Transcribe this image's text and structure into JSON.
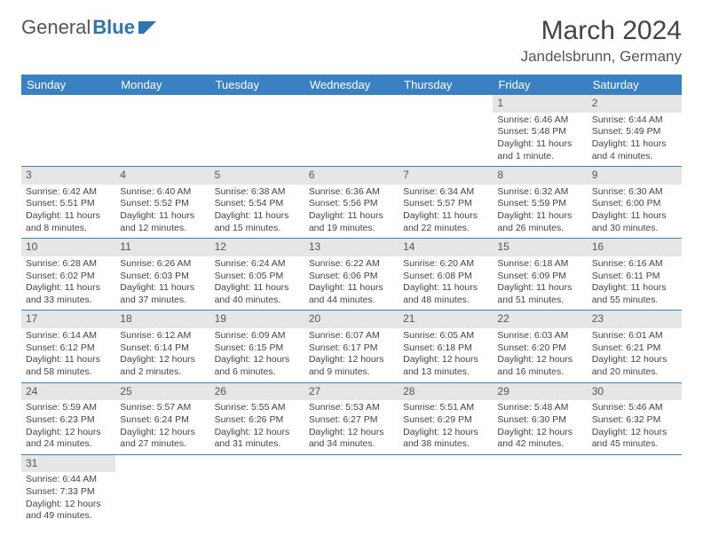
{
  "logo": {
    "text1": "General",
    "text2": "Blue"
  },
  "title": "March 2024",
  "location": "Jandelsbrunn, Germany",
  "colors": {
    "header_bg": "#3a81c4",
    "header_text": "#ffffff",
    "daynum_bg": "#e6e6e6",
    "border": "#3a81c4",
    "logo_blue": "#2e75b6"
  },
  "weekdays": [
    "Sunday",
    "Monday",
    "Tuesday",
    "Wednesday",
    "Thursday",
    "Friday",
    "Saturday"
  ],
  "weeks": [
    [
      null,
      null,
      null,
      null,
      null,
      {
        "n": "1",
        "sr": "Sunrise: 6:46 AM",
        "ss": "Sunset: 5:48 PM",
        "dl": "Daylight: 11 hours and 1 minute."
      },
      {
        "n": "2",
        "sr": "Sunrise: 6:44 AM",
        "ss": "Sunset: 5:49 PM",
        "dl": "Daylight: 11 hours and 4 minutes."
      }
    ],
    [
      {
        "n": "3",
        "sr": "Sunrise: 6:42 AM",
        "ss": "Sunset: 5:51 PM",
        "dl": "Daylight: 11 hours and 8 minutes."
      },
      {
        "n": "4",
        "sr": "Sunrise: 6:40 AM",
        "ss": "Sunset: 5:52 PM",
        "dl": "Daylight: 11 hours and 12 minutes."
      },
      {
        "n": "5",
        "sr": "Sunrise: 6:38 AM",
        "ss": "Sunset: 5:54 PM",
        "dl": "Daylight: 11 hours and 15 minutes."
      },
      {
        "n": "6",
        "sr": "Sunrise: 6:36 AM",
        "ss": "Sunset: 5:56 PM",
        "dl": "Daylight: 11 hours and 19 minutes."
      },
      {
        "n": "7",
        "sr": "Sunrise: 6:34 AM",
        "ss": "Sunset: 5:57 PM",
        "dl": "Daylight: 11 hours and 22 minutes."
      },
      {
        "n": "8",
        "sr": "Sunrise: 6:32 AM",
        "ss": "Sunset: 5:59 PM",
        "dl": "Daylight: 11 hours and 26 minutes."
      },
      {
        "n": "9",
        "sr": "Sunrise: 6:30 AM",
        "ss": "Sunset: 6:00 PM",
        "dl": "Daylight: 11 hours and 30 minutes."
      }
    ],
    [
      {
        "n": "10",
        "sr": "Sunrise: 6:28 AM",
        "ss": "Sunset: 6:02 PM",
        "dl": "Daylight: 11 hours and 33 minutes."
      },
      {
        "n": "11",
        "sr": "Sunrise: 6:26 AM",
        "ss": "Sunset: 6:03 PM",
        "dl": "Daylight: 11 hours and 37 minutes."
      },
      {
        "n": "12",
        "sr": "Sunrise: 6:24 AM",
        "ss": "Sunset: 6:05 PM",
        "dl": "Daylight: 11 hours and 40 minutes."
      },
      {
        "n": "13",
        "sr": "Sunrise: 6:22 AM",
        "ss": "Sunset: 6:06 PM",
        "dl": "Daylight: 11 hours and 44 minutes."
      },
      {
        "n": "14",
        "sr": "Sunrise: 6:20 AM",
        "ss": "Sunset: 6:08 PM",
        "dl": "Daylight: 11 hours and 48 minutes."
      },
      {
        "n": "15",
        "sr": "Sunrise: 6:18 AM",
        "ss": "Sunset: 6:09 PM",
        "dl": "Daylight: 11 hours and 51 minutes."
      },
      {
        "n": "16",
        "sr": "Sunrise: 6:16 AM",
        "ss": "Sunset: 6:11 PM",
        "dl": "Daylight: 11 hours and 55 minutes."
      }
    ],
    [
      {
        "n": "17",
        "sr": "Sunrise: 6:14 AM",
        "ss": "Sunset: 6:12 PM",
        "dl": "Daylight: 11 hours and 58 minutes."
      },
      {
        "n": "18",
        "sr": "Sunrise: 6:12 AM",
        "ss": "Sunset: 6:14 PM",
        "dl": "Daylight: 12 hours and 2 minutes."
      },
      {
        "n": "19",
        "sr": "Sunrise: 6:09 AM",
        "ss": "Sunset: 6:15 PM",
        "dl": "Daylight: 12 hours and 6 minutes."
      },
      {
        "n": "20",
        "sr": "Sunrise: 6:07 AM",
        "ss": "Sunset: 6:17 PM",
        "dl": "Daylight: 12 hours and 9 minutes."
      },
      {
        "n": "21",
        "sr": "Sunrise: 6:05 AM",
        "ss": "Sunset: 6:18 PM",
        "dl": "Daylight: 12 hours and 13 minutes."
      },
      {
        "n": "22",
        "sr": "Sunrise: 6:03 AM",
        "ss": "Sunset: 6:20 PM",
        "dl": "Daylight: 12 hours and 16 minutes."
      },
      {
        "n": "23",
        "sr": "Sunrise: 6:01 AM",
        "ss": "Sunset: 6:21 PM",
        "dl": "Daylight: 12 hours and 20 minutes."
      }
    ],
    [
      {
        "n": "24",
        "sr": "Sunrise: 5:59 AM",
        "ss": "Sunset: 6:23 PM",
        "dl": "Daylight: 12 hours and 24 minutes."
      },
      {
        "n": "25",
        "sr": "Sunrise: 5:57 AM",
        "ss": "Sunset: 6:24 PM",
        "dl": "Daylight: 12 hours and 27 minutes."
      },
      {
        "n": "26",
        "sr": "Sunrise: 5:55 AM",
        "ss": "Sunset: 6:26 PM",
        "dl": "Daylight: 12 hours and 31 minutes."
      },
      {
        "n": "27",
        "sr": "Sunrise: 5:53 AM",
        "ss": "Sunset: 6:27 PM",
        "dl": "Daylight: 12 hours and 34 minutes."
      },
      {
        "n": "28",
        "sr": "Sunrise: 5:51 AM",
        "ss": "Sunset: 6:29 PM",
        "dl": "Daylight: 12 hours and 38 minutes."
      },
      {
        "n": "29",
        "sr": "Sunrise: 5:48 AM",
        "ss": "Sunset: 6:30 PM",
        "dl": "Daylight: 12 hours and 42 minutes."
      },
      {
        "n": "30",
        "sr": "Sunrise: 5:46 AM",
        "ss": "Sunset: 6:32 PM",
        "dl": "Daylight: 12 hours and 45 minutes."
      }
    ],
    [
      {
        "n": "31",
        "sr": "Sunrise: 6:44 AM",
        "ss": "Sunset: 7:33 PM",
        "dl": "Daylight: 12 hours and 49 minutes."
      },
      null,
      null,
      null,
      null,
      null,
      null
    ]
  ]
}
